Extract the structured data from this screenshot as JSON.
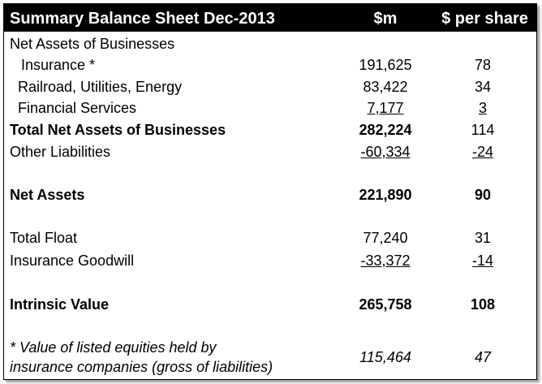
{
  "header": [
    "Summary Balance Sheet Dec-2013",
    "$m",
    "$ per share"
  ],
  "rows": [
    [
      "Net Assets of Businesses"
    ],
    [
      "Insurance *",
      "191,625",
      "78"
    ],
    [
      "Railroad, Utilities, Energy",
      "83,422",
      "34"
    ],
    [
      "Financial Services",
      "7,177",
      "3"
    ],
    [
      "Total Net Assets of Businesses",
      "282,224",
      "114"
    ],
    [
      "Other Liabilities",
      "-60,334",
      "-24"
    ],
    [
      "Net Assets",
      "221,890",
      "90"
    ],
    [
      "Total Float",
      "77,240",
      "31"
    ],
    [
      "Insurance Goodwill",
      "-33,372",
      "-14"
    ],
    [
      "Intrinsic Value",
      "265,758",
      "108"
    ]
  ],
  "footnote": {
    "lines": [
      "* Value of listed equities held by",
      "insurance companies (gross of liabilities)"
    ],
    "m": "115,464",
    "per_share": "47"
  }
}
